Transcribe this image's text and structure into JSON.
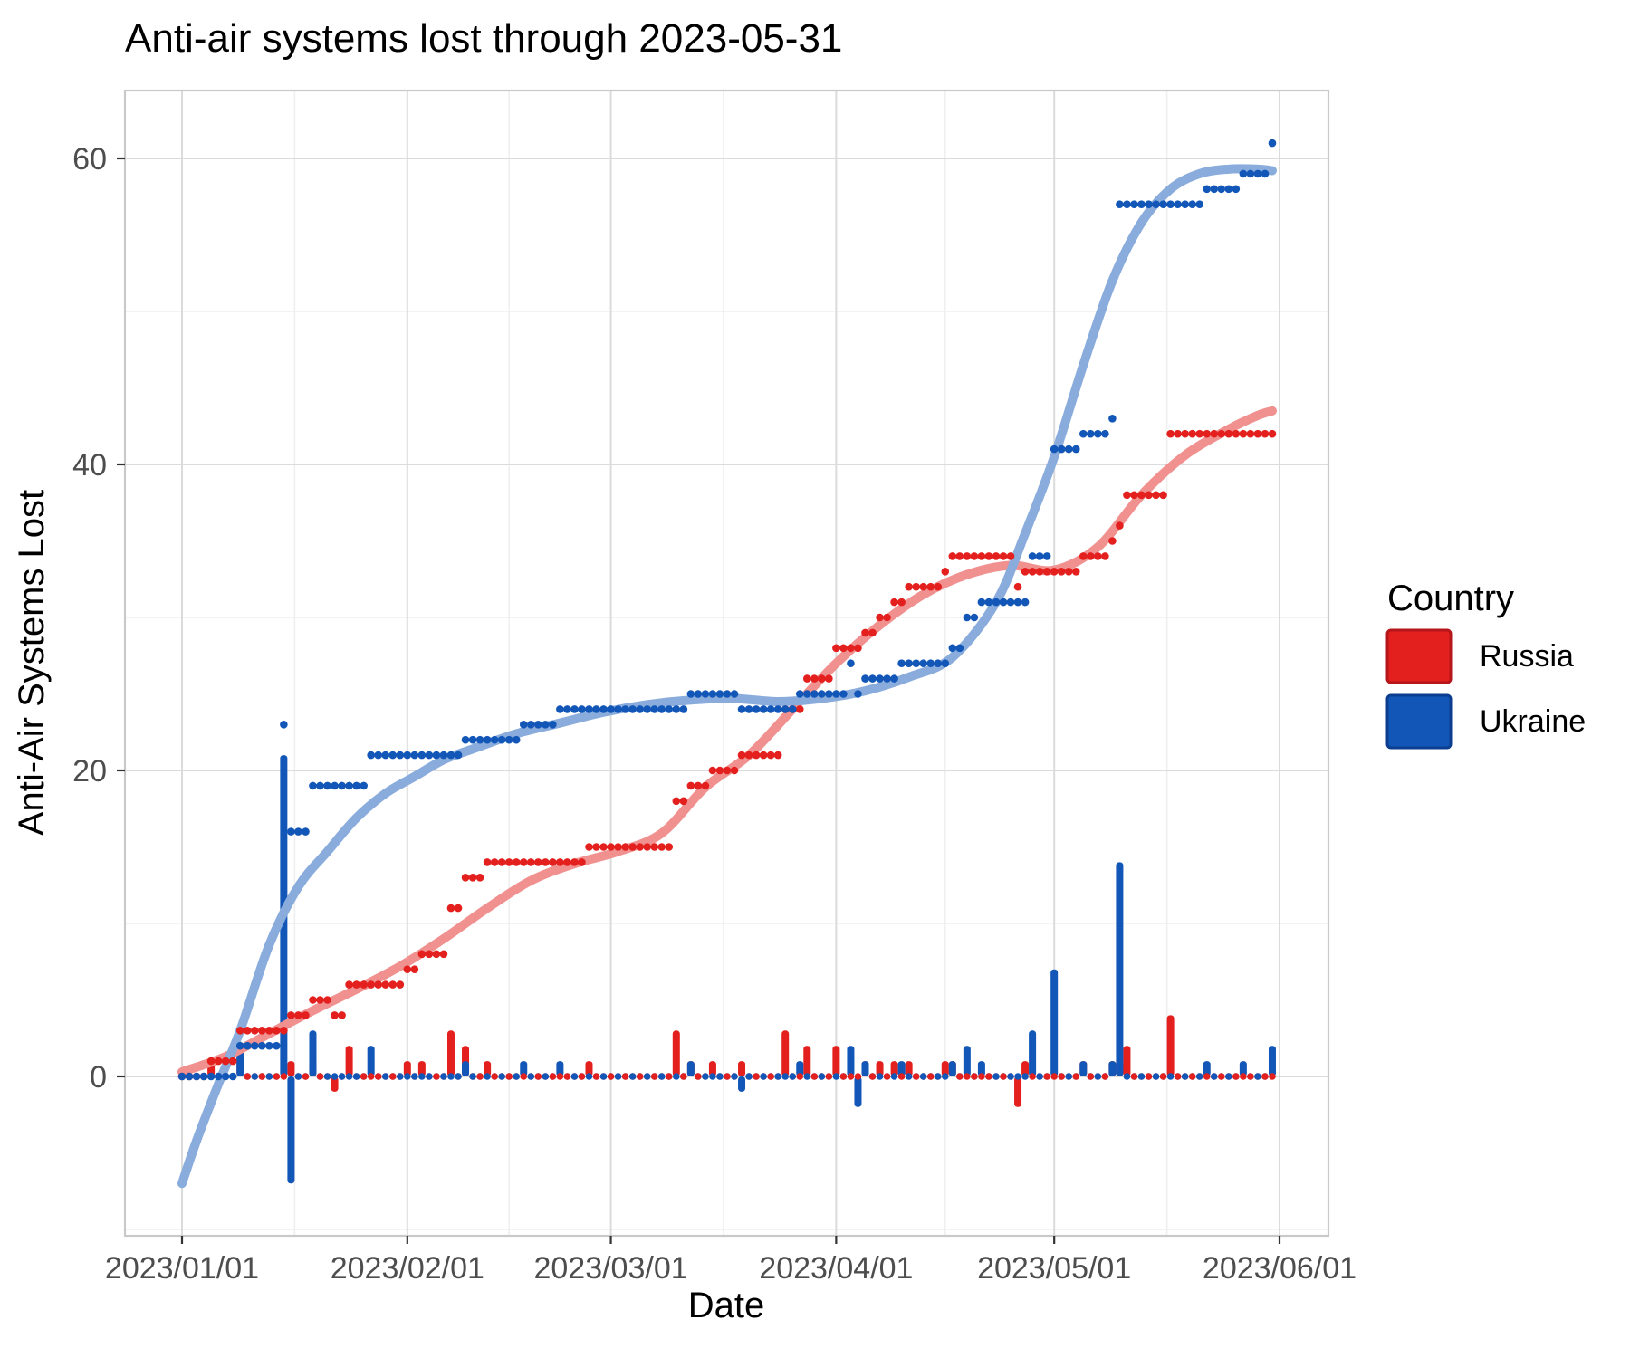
{
  "title": "Anti-air systems lost through 2023-05-31",
  "x_axis": {
    "label": "Date",
    "tick_labels": [
      "2023/01/01",
      "2023/02/01",
      "2023/03/01",
      "2023/04/01",
      "2023/05/01",
      "2023/06/01"
    ],
    "tick_days": [
      0,
      31,
      59,
      90,
      120,
      151
    ]
  },
  "y_axis": {
    "label": "Anti-Air Systems Lost",
    "tick_values": [
      0,
      20,
      40,
      60
    ],
    "minor_values": [
      -10,
      10,
      30,
      50
    ],
    "range": [
      -11,
      64
    ]
  },
  "legend": {
    "title": "Country",
    "items": [
      {
        "label": "Russia",
        "color": "#E3201E",
        "border": "#B5161A"
      },
      {
        "label": "Ukraine",
        "color": "#1257B8",
        "border": "#0C3E8F"
      }
    ]
  },
  "style_colors": {
    "grid_major": "#DBDBDB",
    "grid_minor": "#EFEFEF",
    "panel_border": "#C9C9C9",
    "tick_mark": "#333333",
    "tick_text": "#4D4D4D"
  },
  "chart_data": {
    "type": "line",
    "description": "Cumulative anti-air systems lost per day (points), loess trend (thick light line), and daily change (bars) from 2023-01-01 through 2023-05-31; dots along zero are days with no change.",
    "start_date": "2023-01-01",
    "end_date": "2023-05-31",
    "n_days": 151,
    "ylim": [
      -11,
      64
    ],
    "legend_position": "right",
    "grid": true,
    "series": [
      {
        "name": "Russia",
        "color": "#E3201E",
        "smooth_color": "#F0908F",
        "final_value": 42,
        "cumulative": [
          0,
          0,
          0,
          0,
          1,
          1,
          1,
          1,
          3,
          3,
          3,
          3,
          3,
          3,
          3,
          4,
          4,
          4,
          5,
          5,
          5,
          4,
          4,
          6,
          6,
          6,
          6,
          6,
          6,
          6,
          6,
          7,
          7,
          8,
          8,
          8,
          8,
          11,
          11,
          13,
          13,
          13,
          14,
          14,
          14,
          14,
          14,
          14,
          14,
          14,
          14,
          14,
          14,
          14,
          14,
          14,
          15,
          15,
          15,
          15,
          15,
          15,
          15,
          15,
          15,
          15,
          15,
          15,
          18,
          18,
          19,
          19,
          19,
          20,
          20,
          20,
          20,
          21,
          21,
          21,
          21,
          21,
          21,
          24,
          24,
          24,
          26,
          26,
          26,
          26,
          28,
          28,
          28,
          28,
          29,
          29,
          30,
          30,
          31,
          31,
          32,
          32,
          32,
          32,
          32,
          33,
          34,
          34,
          34,
          34,
          34,
          34,
          34,
          34,
          34,
          32,
          33,
          33,
          33,
          33,
          33,
          33,
          33,
          33,
          34,
          34,
          34,
          34,
          35,
          36,
          38,
          38,
          38,
          38,
          38,
          38,
          42,
          42,
          42,
          42,
          42,
          42,
          42,
          42,
          42,
          42,
          42,
          42,
          42,
          42,
          42
        ],
        "smooth_x": [
          0,
          6,
          12,
          18,
          24,
          30,
          36,
          42,
          48,
          54,
          60,
          66,
          72,
          78,
          84,
          90,
          96,
          102,
          108,
          114,
          120,
          126,
          132,
          138,
          144,
          148,
          150
        ],
        "smooth_y": [
          0.3,
          1.3,
          2.8,
          4.3,
          5.7,
          7.2,
          9.0,
          11.0,
          12.8,
          13.9,
          14.7,
          15.9,
          18.9,
          21.0,
          24.0,
          27.0,
          29.5,
          31.5,
          32.8,
          33.4,
          33.1,
          34.6,
          38.0,
          40.6,
          42.3,
          43.2,
          43.5
        ]
      },
      {
        "name": "Ukraine",
        "color": "#1257B8",
        "smooth_color": "#8AACDC",
        "final_value": 61,
        "cumulative": [
          0,
          0,
          0,
          0,
          0,
          0,
          0,
          0,
          2,
          2,
          2,
          2,
          2,
          2,
          23,
          16,
          16,
          16,
          19,
          19,
          19,
          19,
          19,
          19,
          19,
          19,
          21,
          21,
          21,
          21,
          21,
          21,
          21,
          21,
          21,
          21,
          21,
          21,
          21,
          22,
          22,
          22,
          22,
          22,
          22,
          22,
          22,
          23,
          23,
          23,
          23,
          23,
          24,
          24,
          24,
          24,
          24,
          24,
          24,
          24,
          24,
          24,
          24,
          24,
          24,
          24,
          24,
          24,
          24,
          24,
          25,
          25,
          25,
          25,
          25,
          25,
          25,
          24,
          24,
          24,
          24,
          24,
          24,
          24,
          24,
          25,
          25,
          25,
          25,
          25,
          25,
          25,
          27,
          25,
          26,
          26,
          26,
          26,
          26,
          27,
          27,
          27,
          27,
          27,
          27,
          27,
          28,
          28,
          30,
          30,
          31,
          31,
          31,
          31,
          31,
          31,
          31,
          34,
          34,
          34,
          41,
          41,
          41,
          41,
          42,
          42,
          42,
          42,
          43,
          57,
          57,
          57,
          57,
          57,
          57,
          57,
          57,
          57,
          57,
          57,
          57,
          58,
          58,
          58,
          58,
          58,
          59,
          59,
          59,
          59,
          61
        ],
        "smooth_x": [
          0,
          2,
          5,
          8,
          12,
          16,
          20,
          24,
          28,
          32,
          36,
          40,
          46,
          52,
          58,
          64,
          70,
          76,
          82,
          88,
          94,
          100,
          106,
          112,
          116,
          120,
          124,
          128,
          132,
          136,
          140,
          144,
          148,
          150
        ],
        "smooth_y": [
          -7,
          -4.2,
          -0.5,
          3.0,
          8.6,
          12.4,
          14.7,
          16.9,
          18.5,
          19.6,
          20.7,
          21.4,
          22.4,
          23.1,
          23.8,
          24.3,
          24.6,
          24.7,
          24.5,
          24.7,
          25.2,
          26.1,
          27.4,
          31.0,
          35.5,
          40.5,
          46.5,
          52.0,
          55.8,
          58.0,
          59.0,
          59.3,
          59.3,
          59.2
        ]
      }
    ],
    "bars_note": "daily bars equal first difference of cumulative; notable: Ukraine +21 Jan 15, -7 Jan 16, +7 May 1, +14 May 10, +2 May 31; Russia +3 Feb 7, +3 Mar 10, -2 Apr 26, +4 May 17"
  }
}
